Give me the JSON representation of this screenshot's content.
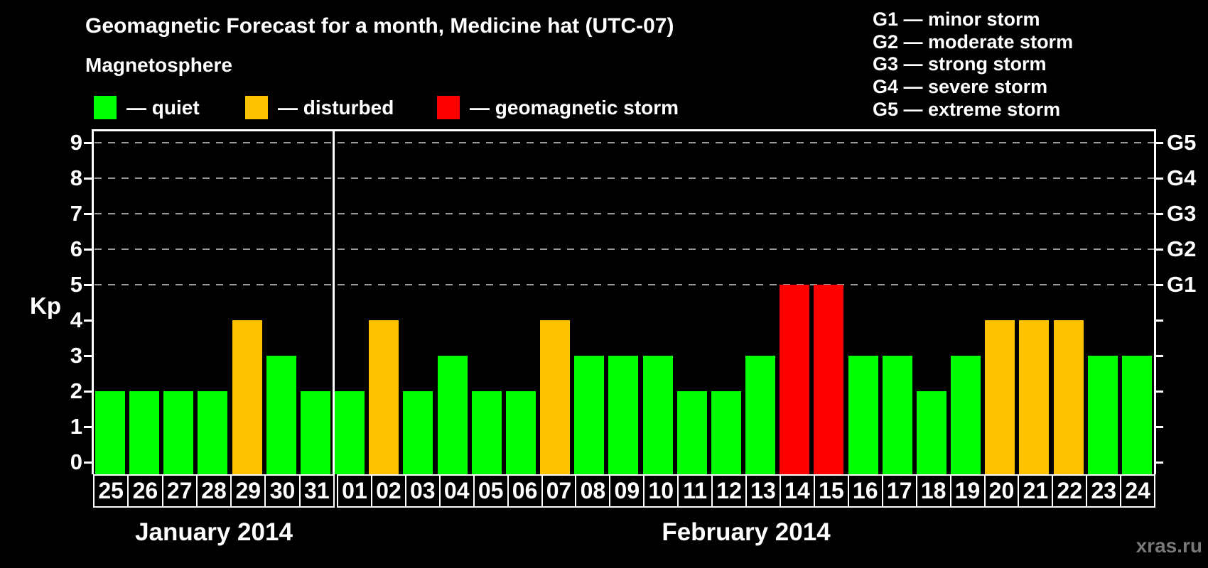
{
  "title": "Geomagnetic Forecast for a month, Medicine hat (UTC-07)",
  "watermark": "xras.ru",
  "magnetosphere_legend": {
    "heading": "Magnetosphere",
    "items": [
      {
        "name": "quiet",
        "label": "— quiet",
        "color": "#00ff00"
      },
      {
        "name": "disturbed",
        "label": "— disturbed",
        "color": "#ffc200"
      },
      {
        "name": "storm",
        "label": "— geomagnetic storm",
        "color": "#ff0000"
      }
    ]
  },
  "storm_scale_legend": {
    "items": [
      "G1 — minor storm",
      "G2 — moderate storm",
      "G3 — strong storm",
      "G4 — severe storm",
      "G5 — extreme storm"
    ]
  },
  "chart_data": {
    "type": "bar",
    "ylabel": "Kp",
    "ylim": [
      0,
      9
    ],
    "yticks": [
      0,
      1,
      2,
      3,
      4,
      5,
      6,
      7,
      8,
      9
    ],
    "gridlines_kp": [
      5,
      6,
      7,
      8,
      9
    ],
    "grid": "dashed gray at storm levels only",
    "right_axis": [
      {
        "kp": 5,
        "label": "G1"
      },
      {
        "kp": 6,
        "label": "G2"
      },
      {
        "kp": 7,
        "label": "G3"
      },
      {
        "kp": 8,
        "label": "G4"
      },
      {
        "kp": 9,
        "label": "G5"
      }
    ],
    "status_colors": {
      "quiet": "#00ff00",
      "disturbed": "#ffc200",
      "storm": "#ff0000"
    },
    "months": [
      {
        "label": "January 2014",
        "days": [
          {
            "day": "25",
            "kp": 2,
            "status": "quiet"
          },
          {
            "day": "26",
            "kp": 2,
            "status": "quiet"
          },
          {
            "day": "27",
            "kp": 2,
            "status": "quiet"
          },
          {
            "day": "28",
            "kp": 2,
            "status": "quiet"
          },
          {
            "day": "29",
            "kp": 4,
            "status": "disturbed"
          },
          {
            "day": "30",
            "kp": 3,
            "status": "quiet"
          },
          {
            "day": "31",
            "kp": 2,
            "status": "quiet"
          }
        ]
      },
      {
        "label": "February 2014",
        "days": [
          {
            "day": "01",
            "kp": 2,
            "status": "quiet"
          },
          {
            "day": "02",
            "kp": 4,
            "status": "disturbed"
          },
          {
            "day": "03",
            "kp": 2,
            "status": "quiet"
          },
          {
            "day": "04",
            "kp": 3,
            "status": "quiet"
          },
          {
            "day": "05",
            "kp": 2,
            "status": "quiet"
          },
          {
            "day": "06",
            "kp": 2,
            "status": "quiet"
          },
          {
            "day": "07",
            "kp": 4,
            "status": "disturbed"
          },
          {
            "day": "08",
            "kp": 3,
            "status": "quiet"
          },
          {
            "day": "09",
            "kp": 3,
            "status": "quiet"
          },
          {
            "day": "10",
            "kp": 3,
            "status": "quiet"
          },
          {
            "day": "11",
            "kp": 2,
            "status": "quiet"
          },
          {
            "day": "12",
            "kp": 2,
            "status": "quiet"
          },
          {
            "day": "13",
            "kp": 3,
            "status": "quiet"
          },
          {
            "day": "14",
            "kp": 5,
            "status": "storm"
          },
          {
            "day": "15",
            "kp": 5,
            "status": "storm"
          },
          {
            "day": "16",
            "kp": 3,
            "status": "quiet"
          },
          {
            "day": "17",
            "kp": 3,
            "status": "quiet"
          },
          {
            "day": "18",
            "kp": 2,
            "status": "quiet"
          },
          {
            "day": "19",
            "kp": 3,
            "status": "quiet"
          },
          {
            "day": "20",
            "kp": 4,
            "status": "disturbed"
          },
          {
            "day": "21",
            "kp": 4,
            "status": "disturbed"
          },
          {
            "day": "22",
            "kp": 4,
            "status": "disturbed"
          },
          {
            "day": "23",
            "kp": 3,
            "status": "quiet"
          },
          {
            "day": "24",
            "kp": 3,
            "status": "quiet"
          }
        ]
      }
    ]
  }
}
